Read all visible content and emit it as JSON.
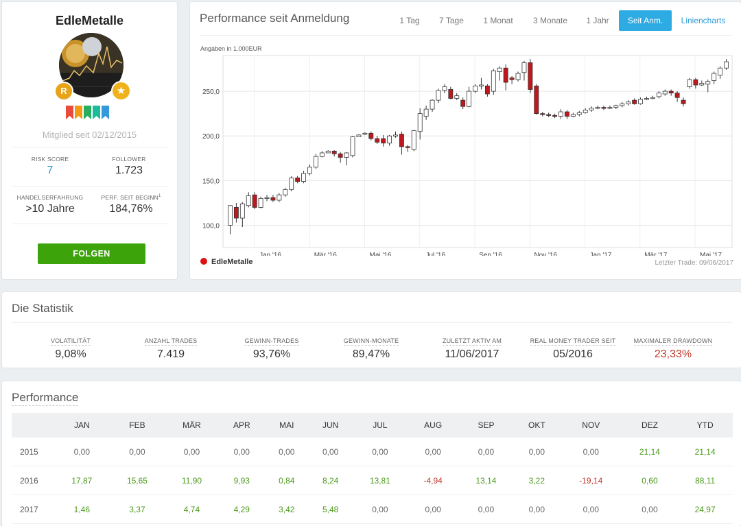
{
  "profile": {
    "name": "EdleMetalle",
    "badge_r": "R",
    "badge_star": "★",
    "member_since": "Mitglied seit 02/12/2015",
    "risk_score_label": "RISK SCORE",
    "risk_score": "7",
    "follower_label": "FOLLOWER",
    "follower": "1.723",
    "experience_label": "HANDELSERFAHRUNG",
    "experience": ">10 Jahre",
    "perf_label": "PERF. SEIT BEGINN",
    "perf_sup": "1",
    "perf": "184,76%",
    "follow_button": "FOLGEN",
    "ribbon_colors": [
      "#e74c3c",
      "#f39c12",
      "#27ae60",
      "#1abc9c",
      "#3498db"
    ]
  },
  "chart_card": {
    "title": "Performance seit Anmeldung",
    "tabs": [
      {
        "label": "1 Tag",
        "active": false
      },
      {
        "label": "7 Tage",
        "active": false
      },
      {
        "label": "1 Monat",
        "active": false
      },
      {
        "label": "3 Monate",
        "active": false
      },
      {
        "label": "1 Jahr",
        "active": false
      },
      {
        "label": "Seit Anm.",
        "active": true
      }
    ],
    "line_chart_link": "Liniencharts",
    "unit_note": "Angaben in 1.000EUR",
    "legend": "EdleMetalle",
    "last_trade": "Letzter Trade: 09/06/2017",
    "accent_color": "#2eabe2"
  },
  "chart_data": {
    "type": "candlestick",
    "x_labels": [
      "Jan '16",
      "Mär '16",
      "Mai '16",
      "Jul '16",
      "Sep '16",
      "Nov '16",
      "Jan '17",
      "Mär '17",
      "Mai '17"
    ],
    "y_ticks": [
      "100,0",
      "150,0",
      "200,0",
      "250,0"
    ],
    "ylim": [
      75,
      290
    ],
    "grid": true,
    "up_color": "#ffffff",
    "down_color": "#c0171d",
    "series": [
      {
        "name": "EdleMetalle",
        "ohlc": [
          [
            100,
            122,
            90,
            122
          ],
          [
            120,
            108,
            103,
            125
          ],
          [
            108,
            124,
            98,
            126
          ],
          [
            122,
            133,
            120,
            137
          ],
          [
            134,
            120,
            118,
            137
          ],
          [
            120,
            130,
            119,
            132
          ],
          [
            130,
            131,
            127,
            134
          ],
          [
            131,
            128,
            126,
            134
          ],
          [
            128,
            134,
            126,
            136
          ],
          [
            134,
            140,
            132,
            142
          ],
          [
            140,
            153,
            138,
            155
          ],
          [
            153,
            149,
            147,
            155
          ],
          [
            149,
            158,
            147,
            161
          ],
          [
            158,
            165,
            156,
            168
          ],
          [
            165,
            177,
            163,
            180
          ],
          [
            177,
            181,
            176,
            183
          ],
          [
            181,
            183,
            181,
            184
          ],
          [
            183,
            180,
            177,
            184
          ],
          [
            180,
            176,
            170,
            182
          ],
          [
            176,
            181,
            167,
            182
          ],
          [
            178,
            199,
            176,
            200
          ],
          [
            199,
            201,
            199,
            202
          ],
          [
            202,
            203,
            201,
            204
          ],
          [
            203,
            197,
            195,
            205
          ],
          [
            197,
            193,
            191,
            200
          ],
          [
            197,
            192,
            188,
            201
          ],
          [
            192,
            200,
            189,
            201
          ],
          [
            200,
            201,
            198,
            205
          ],
          [
            202,
            188,
            179,
            205
          ],
          [
            188,
            187,
            182,
            190
          ],
          [
            185,
            206,
            183,
            207
          ],
          [
            205,
            225,
            196,
            231
          ],
          [
            222,
            230,
            218,
            234
          ],
          [
            230,
            240,
            227,
            241
          ],
          [
            240,
            251,
            237,
            253
          ],
          [
            251,
            255,
            248,
            258
          ],
          [
            252,
            242,
            241,
            255
          ],
          [
            242,
            245,
            240,
            248
          ],
          [
            240,
            233,
            230,
            243
          ],
          [
            233,
            250,
            232,
            255
          ],
          [
            250,
            256,
            248,
            258
          ],
          [
            256,
            257,
            252,
            265
          ],
          [
            256,
            247,
            244,
            258
          ],
          [
            250,
            273,
            246,
            275
          ],
          [
            272,
            276,
            262,
            278
          ],
          [
            276,
            260,
            251,
            280
          ],
          [
            265,
            263,
            258,
            267
          ],
          [
            263,
            270,
            261,
            272
          ],
          [
            271,
            282,
            262,
            284
          ],
          [
            282,
            252,
            248,
            286
          ],
          [
            256,
            225,
            224,
            258
          ],
          [
            225,
            224,
            222,
            227
          ],
          [
            224,
            223,
            221,
            226
          ],
          [
            223,
            222,
            220,
            225
          ],
          [
            222,
            227,
            219,
            230
          ],
          [
            227,
            222,
            219,
            229
          ],
          [
            222,
            224,
            221,
            226
          ],
          [
            224,
            226,
            222,
            228
          ],
          [
            226,
            229,
            225,
            231
          ],
          [
            229,
            231,
            227,
            233
          ],
          [
            231,
            232,
            230,
            234
          ],
          [
            232,
            231,
            229,
            234
          ],
          [
            231,
            232,
            230,
            234
          ],
          [
            232,
            234,
            230,
            235
          ],
          [
            234,
            236,
            232,
            238
          ],
          [
            236,
            238,
            234,
            240
          ],
          [
            240,
            236,
            235,
            242
          ],
          [
            236,
            241,
            235,
            243
          ],
          [
            241,
            242,
            240,
            244
          ],
          [
            242,
            243,
            241,
            245
          ],
          [
            244,
            248,
            242,
            250
          ],
          [
            247,
            250,
            245,
            252
          ],
          [
            250,
            248,
            245,
            252
          ],
          [
            248,
            243,
            238,
            250
          ],
          [
            240,
            236,
            233,
            243
          ],
          [
            255,
            263,
            253,
            265
          ],
          [
            263,
            257,
            253,
            265
          ],
          [
            257,
            259,
            256,
            262
          ],
          [
            258,
            261,
            249,
            263
          ],
          [
            262,
            270,
            258,
            272
          ],
          [
            268,
            276,
            264,
            278
          ],
          [
            276,
            283,
            274,
            286
          ]
        ]
      }
    ]
  },
  "statistics": {
    "title": "Die Statistik",
    "items": [
      {
        "label": "VOLATILITÄT",
        "value": "9,08%",
        "negative": false
      },
      {
        "label": "ANZAHL TRADES",
        "value": "7.419",
        "negative": false
      },
      {
        "label": "GEWINN-TRADES",
        "value": "93,76%",
        "negative": false
      },
      {
        "label": "GEWINN-MONATE",
        "value": "89,47%",
        "negative": false
      },
      {
        "label": "ZULETZT AKTIV AM",
        "value": "11/06/2017",
        "negative": false
      },
      {
        "label": "REAL MONEY TRADER SEIT",
        "value": "05/2016",
        "negative": false
      },
      {
        "label": "MAXIMALER DRAWDOWN",
        "value": "23,33%",
        "negative": true
      }
    ]
  },
  "performance": {
    "title": "Performance",
    "headers": [
      "",
      "JAN",
      "FEB",
      "MÄR",
      "APR",
      "MAI",
      "JUN",
      "JUL",
      "AUG",
      "SEP",
      "OKT",
      "NOV",
      "DEZ",
      "YTD"
    ],
    "rows": [
      {
        "year": "2015",
        "values": [
          "0,00",
          "0,00",
          "0,00",
          "0,00",
          "0,00",
          "0,00",
          "0,00",
          "0,00",
          "0,00",
          "0,00",
          "0,00",
          "21,14",
          "21,14"
        ]
      },
      {
        "year": "2016",
        "values": [
          "17,87",
          "15,65",
          "11,90",
          "9,93",
          "0,84",
          "8,24",
          "13,81",
          "-4,94",
          "13,14",
          "3,22",
          "-19,14",
          "0,60",
          "88,11"
        ]
      },
      {
        "year": "2017",
        "values": [
          "1,46",
          "3,37",
          "4,74",
          "4,29",
          "3,42",
          "5,48",
          "0,00",
          "0,00",
          "0,00",
          "0,00",
          "0,00",
          "0,00",
          "24,97"
        ]
      }
    ]
  }
}
